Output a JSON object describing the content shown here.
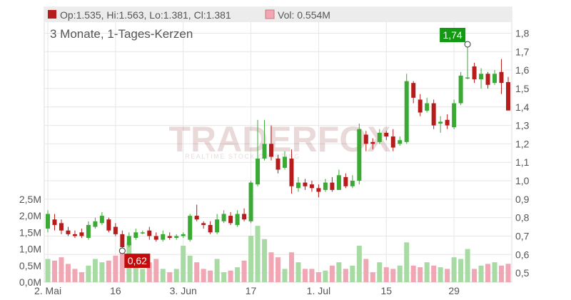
{
  "header": {
    "ohlc_text": "Op:1.535, Hi:1.563, Lo:1.381, Cl:1.381",
    "vol_text": "Vol: 0.554M",
    "subtitle": "3 Monate, 1-Tages-Kerzen"
  },
  "watermark": {
    "brand": "TRADERFOX",
    "tagline": "REALTIME STOCK CHARTING"
  },
  "colors": {
    "up": "#3aaa35",
    "down": "#b71c1c",
    "vol_up": "#a8dba4",
    "vol_down": "#f0a6b3",
    "vol_neutral": "#c8c8c8",
    "max_badge": "#139a13",
    "min_badge": "#c40b0b"
  },
  "chart_data": {
    "type": "candlestick",
    "title": "3 Monate, 1-Tages-Kerzen",
    "price_axis": {
      "ticks": [
        "1,8",
        "1,7",
        "1,6",
        "1,5",
        "1,4",
        "1,3",
        "1,2",
        "1,1",
        "1,0",
        "0,9",
        "0,8",
        "0,7",
        "0,6",
        "0,5"
      ],
      "range": [
        0.45,
        1.86
      ]
    },
    "volume_axis": {
      "ticks": [
        "2,5M",
        "2,0M",
        "1,5M",
        "1,0M",
        "0,5M",
        "0,0M"
      ],
      "range": [
        0,
        2.5
      ]
    },
    "x_ticks": [
      "2. Mai",
      "16",
      "3. Jun",
      "17",
      "1. Jul",
      "15",
      "29"
    ],
    "x_tick_index": [
      0,
      10,
      20,
      30,
      40,
      50,
      60
    ],
    "max_label": "1,74",
    "min_label": "0,62",
    "candles": [
      [
        0.74,
        0.82,
        0.84,
        0.72,
        0.7
      ],
      [
        0.79,
        0.76,
        0.82,
        0.73,
        0.65
      ],
      [
        0.77,
        0.73,
        0.79,
        0.71,
        0.75
      ],
      [
        0.73,
        0.71,
        0.75,
        0.7,
        0.55
      ],
      [
        0.71,
        0.7,
        0.73,
        0.69,
        0.4
      ],
      [
        0.72,
        0.7,
        0.74,
        0.69,
        0.3
      ],
      [
        0.69,
        0.76,
        0.78,
        0.68,
        0.5
      ],
      [
        0.75,
        0.78,
        0.8,
        0.74,
        0.7
      ],
      [
        0.77,
        0.81,
        0.83,
        0.76,
        0.6
      ],
      [
        0.79,
        0.73,
        0.8,
        0.72,
        0.65
      ],
      [
        0.75,
        0.71,
        0.77,
        0.7,
        0.8
      ],
      [
        0.71,
        0.64,
        0.73,
        0.62,
        0.9
      ],
      [
        0.65,
        0.7,
        0.72,
        0.64,
        1.2
      ],
      [
        0.69,
        0.72,
        0.74,
        0.68,
        0.55
      ],
      [
        0.72,
        0.72,
        0.73,
        0.71,
        0.4
      ],
      [
        0.73,
        0.7,
        0.75,
        0.68,
        0.6
      ],
      [
        0.7,
        0.68,
        0.72,
        0.67,
        0.7
      ],
      [
        0.68,
        0.71,
        0.73,
        0.67,
        0.4
      ],
      [
        0.7,
        0.69,
        0.72,
        0.68,
        0.3
      ],
      [
        0.69,
        0.7,
        0.71,
        0.68,
        0.4
      ],
      [
        0.7,
        0.71,
        0.72,
        0.69,
        1.1
      ],
      [
        0.68,
        0.81,
        0.82,
        0.67,
        0.8
      ],
      [
        0.81,
        0.79,
        0.87,
        0.78,
        0.6
      ],
      [
        0.77,
        0.76,
        0.78,
        0.74,
        0.4
      ],
      [
        0.76,
        0.72,
        0.78,
        0.71,
        0.35
      ],
      [
        0.72,
        0.79,
        0.82,
        0.71,
        0.7
      ],
      [
        0.78,
        0.82,
        0.84,
        0.77,
        0.3
      ],
      [
        0.81,
        0.77,
        0.83,
        0.76,
        0.35
      ],
      [
        0.76,
        0.82,
        0.84,
        0.75,
        0.45
      ],
      [
        0.82,
        0.79,
        0.85,
        0.78,
        0.65
      ],
      [
        0.78,
        0.99,
        1.0,
        0.77,
        1.4
      ],
      [
        0.98,
        1.12,
        1.33,
        0.97,
        1.7
      ],
      [
        1.12,
        1.2,
        1.33,
        1.11,
        1.3
      ],
      [
        1.2,
        1.13,
        1.3,
        1.11,
        0.9
      ],
      [
        1.12,
        1.06,
        1.14,
        1.04,
        0.75
      ],
      [
        1.07,
        1.13,
        1.16,
        1.06,
        0.4
      ],
      [
        1.12,
        0.97,
        1.17,
        0.93,
        0.9
      ],
      [
        0.96,
        0.99,
        1.02,
        0.94,
        0.6
      ],
      [
        0.99,
        0.97,
        1.01,
        0.95,
        0.4
      ],
      [
        0.98,
        0.96,
        1.0,
        0.94,
        0.4
      ],
      [
        0.96,
        0.94,
        0.98,
        0.91,
        0.3
      ],
      [
        0.95,
        0.99,
        1.01,
        0.94,
        0.35
      ],
      [
        0.99,
        0.95,
        1.02,
        0.94,
        0.5
      ],
      [
        0.95,
        1.03,
        1.06,
        0.95,
        0.6
      ],
      [
        1.02,
        0.97,
        1.04,
        0.96,
        0.4
      ],
      [
        0.97,
        1.0,
        1.03,
        0.96,
        0.5
      ],
      [
        1.0,
        1.28,
        1.31,
        0.98,
        1.1
      ],
      [
        1.25,
        1.2,
        1.27,
        1.16,
        0.7
      ],
      [
        1.21,
        1.2,
        1.23,
        1.17,
        0.3
      ],
      [
        1.21,
        1.26,
        1.28,
        1.2,
        0.6
      ],
      [
        1.26,
        1.24,
        1.27,
        1.22,
        0.45
      ],
      [
        1.24,
        1.18,
        1.28,
        1.16,
        0.4
      ],
      [
        1.2,
        1.22,
        1.24,
        1.19,
        0.5
      ],
      [
        1.21,
        1.54,
        1.58,
        1.2,
        1.2
      ],
      [
        1.53,
        1.45,
        1.54,
        1.42,
        0.5
      ],
      [
        1.44,
        1.37,
        1.47,
        1.35,
        0.45
      ],
      [
        1.38,
        1.42,
        1.45,
        1.37,
        0.6
      ],
      [
        1.42,
        1.3,
        1.44,
        1.28,
        0.5
      ],
      [
        1.31,
        1.32,
        1.35,
        1.26,
        0.45
      ],
      [
        1.33,
        1.3,
        1.36,
        1.28,
        0.4
      ],
      [
        1.29,
        1.42,
        1.44,
        1.28,
        0.75
      ],
      [
        1.42,
        1.57,
        1.59,
        1.41,
        0.7
      ],
      [
        1.56,
        1.56,
        1.74,
        1.55,
        1.0
      ],
      [
        1.62,
        1.55,
        1.64,
        1.53,
        0.4
      ],
      [
        1.55,
        1.58,
        1.61,
        1.5,
        0.5
      ],
      [
        1.58,
        1.52,
        1.59,
        1.5,
        0.55
      ],
      [
        1.53,
        1.58,
        1.6,
        1.52,
        0.6
      ],
      [
        1.59,
        1.53,
        1.66,
        1.47,
        0.5
      ],
      [
        1.535,
        1.381,
        1.563,
        1.381,
        0.554
      ]
    ]
  }
}
